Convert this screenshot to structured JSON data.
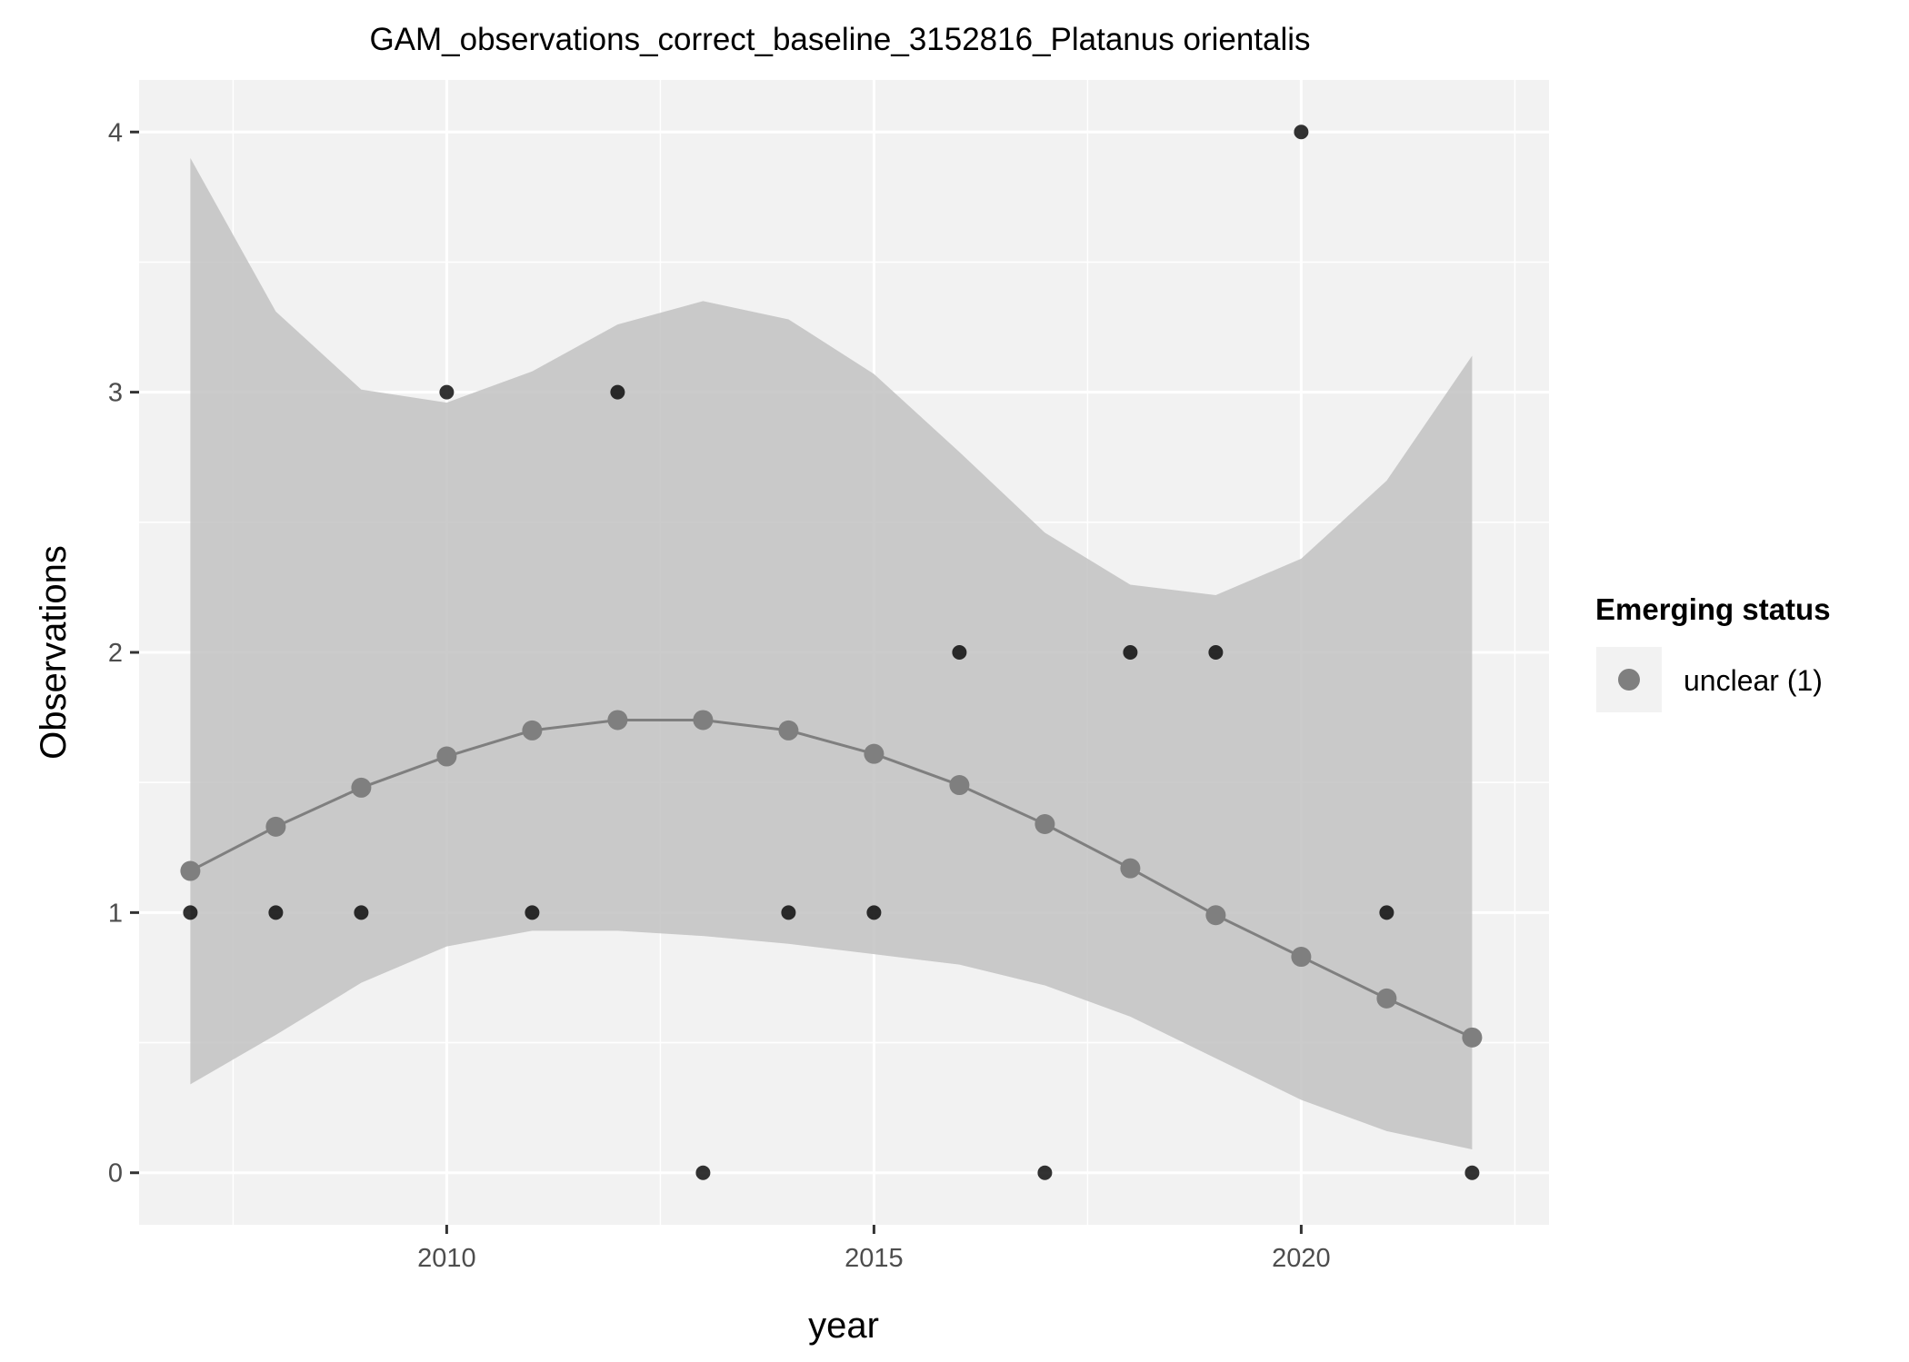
{
  "chart_data": {
    "type": "scatter",
    "title": "GAM_observations_correct_baseline_3152816_Platanus orientalis",
    "xlabel": "year",
    "ylabel": "Observations",
    "xlim": [
      2006.4,
      2022.9
    ],
    "ylim": [
      -0.2,
      4.2
    ],
    "x_ticks": [
      2010,
      2015,
      2020
    ],
    "x_tick_labels": [
      "2010",
      "2015",
      "2020"
    ],
    "y_ticks": [
      0,
      1,
      2,
      3,
      4
    ],
    "y_tick_labels": [
      "0",
      "1",
      "2",
      "3",
      "4"
    ],
    "grid": true,
    "observations": {
      "x": [
        2007,
        2008,
        2009,
        2010,
        2011,
        2012,
        2013,
        2014,
        2015,
        2016,
        2017,
        2018,
        2019,
        2020,
        2021,
        2022
      ],
      "y": [
        1,
        1,
        1,
        3,
        1,
        3,
        0,
        1,
        1,
        2,
        0,
        2,
        2,
        4,
        1,
        0
      ],
      "color": "#000000"
    },
    "fit": {
      "x": [
        2007,
        2008,
        2009,
        2010,
        2011,
        2012,
        2013,
        2014,
        2015,
        2016,
        2017,
        2018,
        2019,
        2020,
        2021,
        2022
      ],
      "y": [
        1.16,
        1.33,
        1.48,
        1.6,
        1.7,
        1.74,
        1.74,
        1.7,
        1.61,
        1.49,
        1.34,
        1.17,
        0.99,
        0.83,
        0.67,
        0.52
      ],
      "lower": [
        0.34,
        0.53,
        0.73,
        0.87,
        0.93,
        0.93,
        0.91,
        0.88,
        0.84,
        0.8,
        0.72,
        0.6,
        0.44,
        0.28,
        0.16,
        0.09
      ],
      "upper": [
        3.9,
        3.31,
        3.01,
        2.96,
        3.08,
        3.26,
        3.35,
        3.28,
        3.07,
        2.77,
        2.46,
        2.26,
        2.22,
        2.36,
        2.66,
        3.14
      ],
      "color": "#7f7f7f",
      "band_color": "#bebebe"
    },
    "legend": {
      "title": "Emerging status",
      "entries": [
        {
          "label": "unclear (1)",
          "color": "#7f7f7f"
        }
      ],
      "position": "right"
    },
    "colors": {
      "panel_background": "#f2f2f2",
      "grid": "#ffffff"
    }
  }
}
